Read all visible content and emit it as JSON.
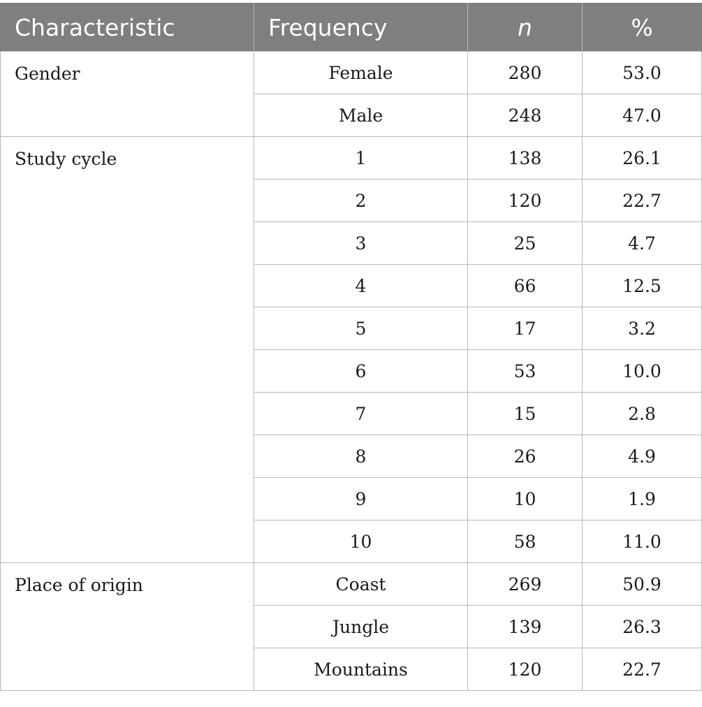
{
  "headers": {
    "characteristic": "Characteristic",
    "frequency": "Frequency",
    "n": "n",
    "percent": "%"
  },
  "groups": [
    {
      "label": "Gender",
      "rows": [
        {
          "frequency": "Female",
          "n": "280",
          "percent": "53.0"
        },
        {
          "frequency": "Male",
          "n": "248",
          "percent": "47.0"
        }
      ]
    },
    {
      "label": "Study cycle",
      "rows": [
        {
          "frequency": "1",
          "n": "138",
          "percent": "26.1"
        },
        {
          "frequency": "2",
          "n": "120",
          "percent": "22.7"
        },
        {
          "frequency": "3",
          "n": "25",
          "percent": "4.7"
        },
        {
          "frequency": "4",
          "n": "66",
          "percent": "12.5"
        },
        {
          "frequency": "5",
          "n": "17",
          "percent": "3.2"
        },
        {
          "frequency": "6",
          "n": "53",
          "percent": "10.0"
        },
        {
          "frequency": "7",
          "n": "15",
          "percent": "2.8"
        },
        {
          "frequency": "8",
          "n": "26",
          "percent": "4.9"
        },
        {
          "frequency": "9",
          "n": "10",
          "percent": "1.9"
        },
        {
          "frequency": "10",
          "n": "58",
          "percent": "11.0"
        }
      ]
    },
    {
      "label": "Place of origin",
      "rows": [
        {
          "frequency": "Coast",
          "n": "269",
          "percent": "50.9"
        },
        {
          "frequency": "Jungle",
          "n": "139",
          "percent": "26.3"
        },
        {
          "frequency": "Mountains",
          "n": "120",
          "percent": "22.7"
        }
      ]
    }
  ]
}
